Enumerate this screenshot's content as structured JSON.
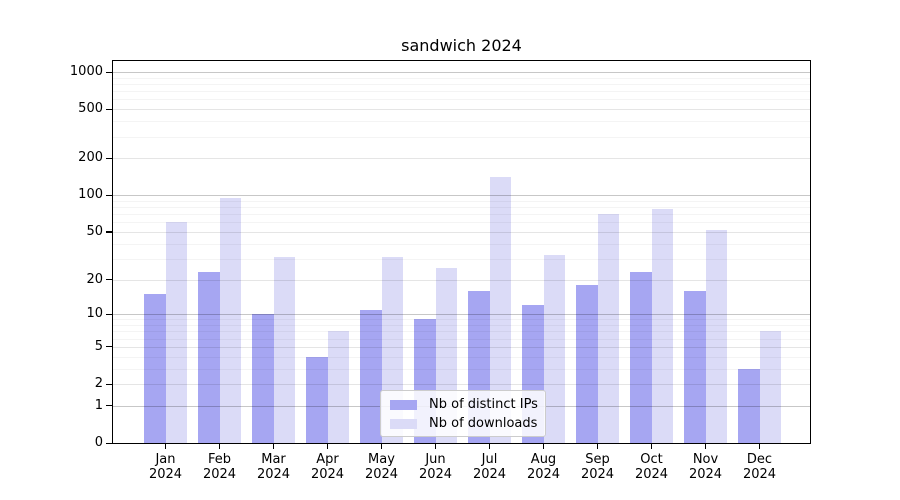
{
  "chart_data": {
    "type": "bar",
    "title": "sandwich 2024",
    "categories": [
      "Jan",
      "Feb",
      "Mar",
      "Apr",
      "May",
      "Jun",
      "Jul",
      "Aug",
      "Sep",
      "Oct",
      "Nov",
      "Dec"
    ],
    "category_year": "2024",
    "series": [
      {
        "name": "Nb of distinct IPs",
        "color": "#a6a6f2",
        "values": [
          15,
          23,
          10,
          4,
          11,
          9,
          16,
          12,
          18,
          23,
          16,
          3
        ]
      },
      {
        "name": "Nb of downloads",
        "color": "#dbdbf7",
        "values": [
          60,
          95,
          31,
          7,
          31,
          25,
          140,
          32,
          70,
          77,
          52,
          7
        ]
      }
    ],
    "xlabel": "",
    "ylabel": "",
    "y_scale": "log1p",
    "y_ticks": [
      0,
      1,
      2,
      5,
      10,
      20,
      50,
      100,
      200,
      500,
      1000
    ],
    "y_minor_gridlines": [
      3,
      4,
      6,
      7,
      8,
      9,
      30,
      40,
      60,
      70,
      80,
      90,
      300,
      400,
      600,
      700,
      800,
      900
    ],
    "ylim": [
      0,
      1200
    ],
    "grid": true,
    "legend_position": "lower center"
  }
}
